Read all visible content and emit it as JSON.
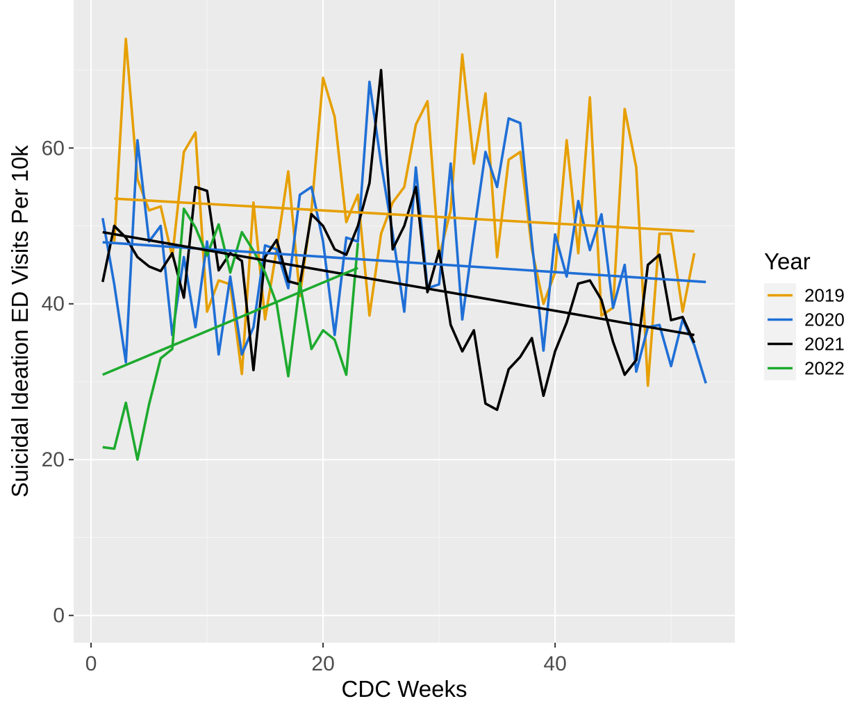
{
  "chart_data": {
    "type": "line",
    "title": "",
    "xlabel": "CDC Weeks",
    "ylabel": "Suicidal Ideation ED Visits Per 10k",
    "xlim": [
      -1.5,
      55.5
    ],
    "ylim": [
      -3.5,
      79
    ],
    "xticks": [
      0,
      20,
      40
    ],
    "xtick_labels": [
      "0",
      "20",
      "40"
    ],
    "yticks": [
      0,
      20,
      40,
      60
    ],
    "ytick_labels": [
      "0",
      "20",
      "40",
      "60"
    ],
    "grid": true,
    "legend": {
      "title": "Year",
      "position": "right"
    },
    "series": [
      {
        "name": "2019",
        "color": "#E69F00",
        "x": [
          2,
          3,
          4,
          5,
          6,
          7,
          8,
          9,
          10,
          11,
          12,
          13,
          14,
          15,
          16,
          17,
          18,
          19,
          20,
          21,
          22,
          23,
          24,
          25,
          26,
          27,
          28,
          29,
          30,
          31,
          32,
          33,
          34,
          35,
          36,
          37,
          38,
          39,
          40,
          41,
          42,
          43,
          44,
          45,
          46,
          47,
          48,
          49,
          50,
          51,
          52
        ],
        "values": [
          48,
          74,
          56,
          52,
          52.5,
          46,
          59.5,
          62,
          39,
          43,
          42.5,
          31,
          53,
          38,
          47,
          57,
          41,
          52,
          69,
          64,
          50.5,
          54,
          38.5,
          49,
          53,
          55,
          63,
          66,
          46,
          52,
          72,
          58,
          67,
          46,
          58.5,
          59.5,
          47,
          40,
          44,
          61,
          46.5,
          66.5,
          38.5,
          39.5,
          65,
          57.5,
          29.5,
          49,
          49,
          39,
          46.5
        ],
        "trend": {
          "x": [
            2,
            52
          ],
          "y": [
            53.5,
            49.3
          ]
        }
      },
      {
        "name": "2020",
        "color": "#1F6FD6",
        "x": [
          1,
          2,
          3,
          4,
          5,
          6,
          7,
          8,
          9,
          10,
          11,
          12,
          13,
          14,
          15,
          16,
          17,
          18,
          19,
          20,
          21,
          22,
          23,
          24,
          25,
          26,
          27,
          28,
          29,
          30,
          31,
          32,
          33,
          34,
          35,
          36,
          37,
          38,
          39,
          40,
          41,
          42,
          43,
          44,
          45,
          46,
          47,
          48,
          49,
          50,
          51,
          52,
          53
        ],
        "values": [
          51,
          42.5,
          32.5,
          61,
          48,
          50,
          36,
          46,
          37,
          48,
          33.5,
          43.5,
          33.5,
          37,
          47.5,
          47,
          42,
          54,
          55,
          48,
          36,
          48.5,
          48,
          68.5,
          58,
          49,
          39,
          57.5,
          42,
          42.5,
          58,
          38,
          49,
          59.5,
          55,
          63.8,
          63.2,
          48,
          34,
          48.9,
          43.5,
          53.2,
          46.9,
          51.5,
          39.5,
          45,
          31.3,
          37,
          37.3,
          32,
          38,
          34.7,
          29.8
        ],
        "trend": {
          "x": [
            1,
            53
          ],
          "y": [
            47.9,
            42.8
          ]
        }
      },
      {
        "name": "2021",
        "color": "#000000",
        "x": [
          1,
          2,
          3,
          4,
          5,
          6,
          7,
          8,
          9,
          10,
          11,
          12,
          13,
          14,
          15,
          16,
          17,
          18,
          19,
          20,
          21,
          22,
          23,
          24,
          25,
          26,
          27,
          28,
          29,
          30,
          31,
          32,
          33,
          34,
          35,
          36,
          37,
          38,
          39,
          40,
          41,
          42,
          43,
          44,
          45,
          46,
          47,
          48,
          49,
          50,
          51,
          52
        ],
        "values": [
          42.8,
          50,
          48.5,
          46,
          44.8,
          44.2,
          46.5,
          40.8,
          55,
          54.5,
          44.3,
          46.5,
          45.5,
          31.5,
          46,
          48.2,
          42.9,
          42.5,
          51.5,
          50,
          47,
          46.3,
          50,
          55.5,
          70,
          47,
          50,
          55,
          41.5,
          46.8,
          37.3,
          33.9,
          36.6,
          27.2,
          26.4,
          31.6,
          33.2,
          35.6,
          28.2,
          33.9,
          37.6,
          42.6,
          43,
          40.5,
          35.1,
          30.9,
          32.8,
          45,
          46.3,
          37.9,
          38.3,
          35
        ],
        "trend": {
          "x": [
            1,
            52
          ],
          "y": [
            49.2,
            36
          ]
        }
      },
      {
        "name": "2022",
        "color": "#1DAA2E",
        "x": [
          1,
          2,
          3,
          4,
          5,
          6,
          7,
          8,
          9,
          10,
          11,
          12,
          13,
          14,
          15,
          16,
          17,
          18,
          19,
          20,
          21,
          22,
          23
        ],
        "values": [
          21.6,
          21.4,
          27.3,
          20,
          27.1,
          33,
          34.2,
          52.2,
          49.8,
          46.2,
          50.2,
          44,
          49.2,
          46.8,
          44,
          40,
          30.7,
          42.7,
          34.2,
          36.6,
          35.4,
          30.9,
          47.8
        ],
        "trend": {
          "x": [
            1,
            23
          ],
          "y": [
            30.9,
            44.6
          ]
        }
      }
    ]
  }
}
